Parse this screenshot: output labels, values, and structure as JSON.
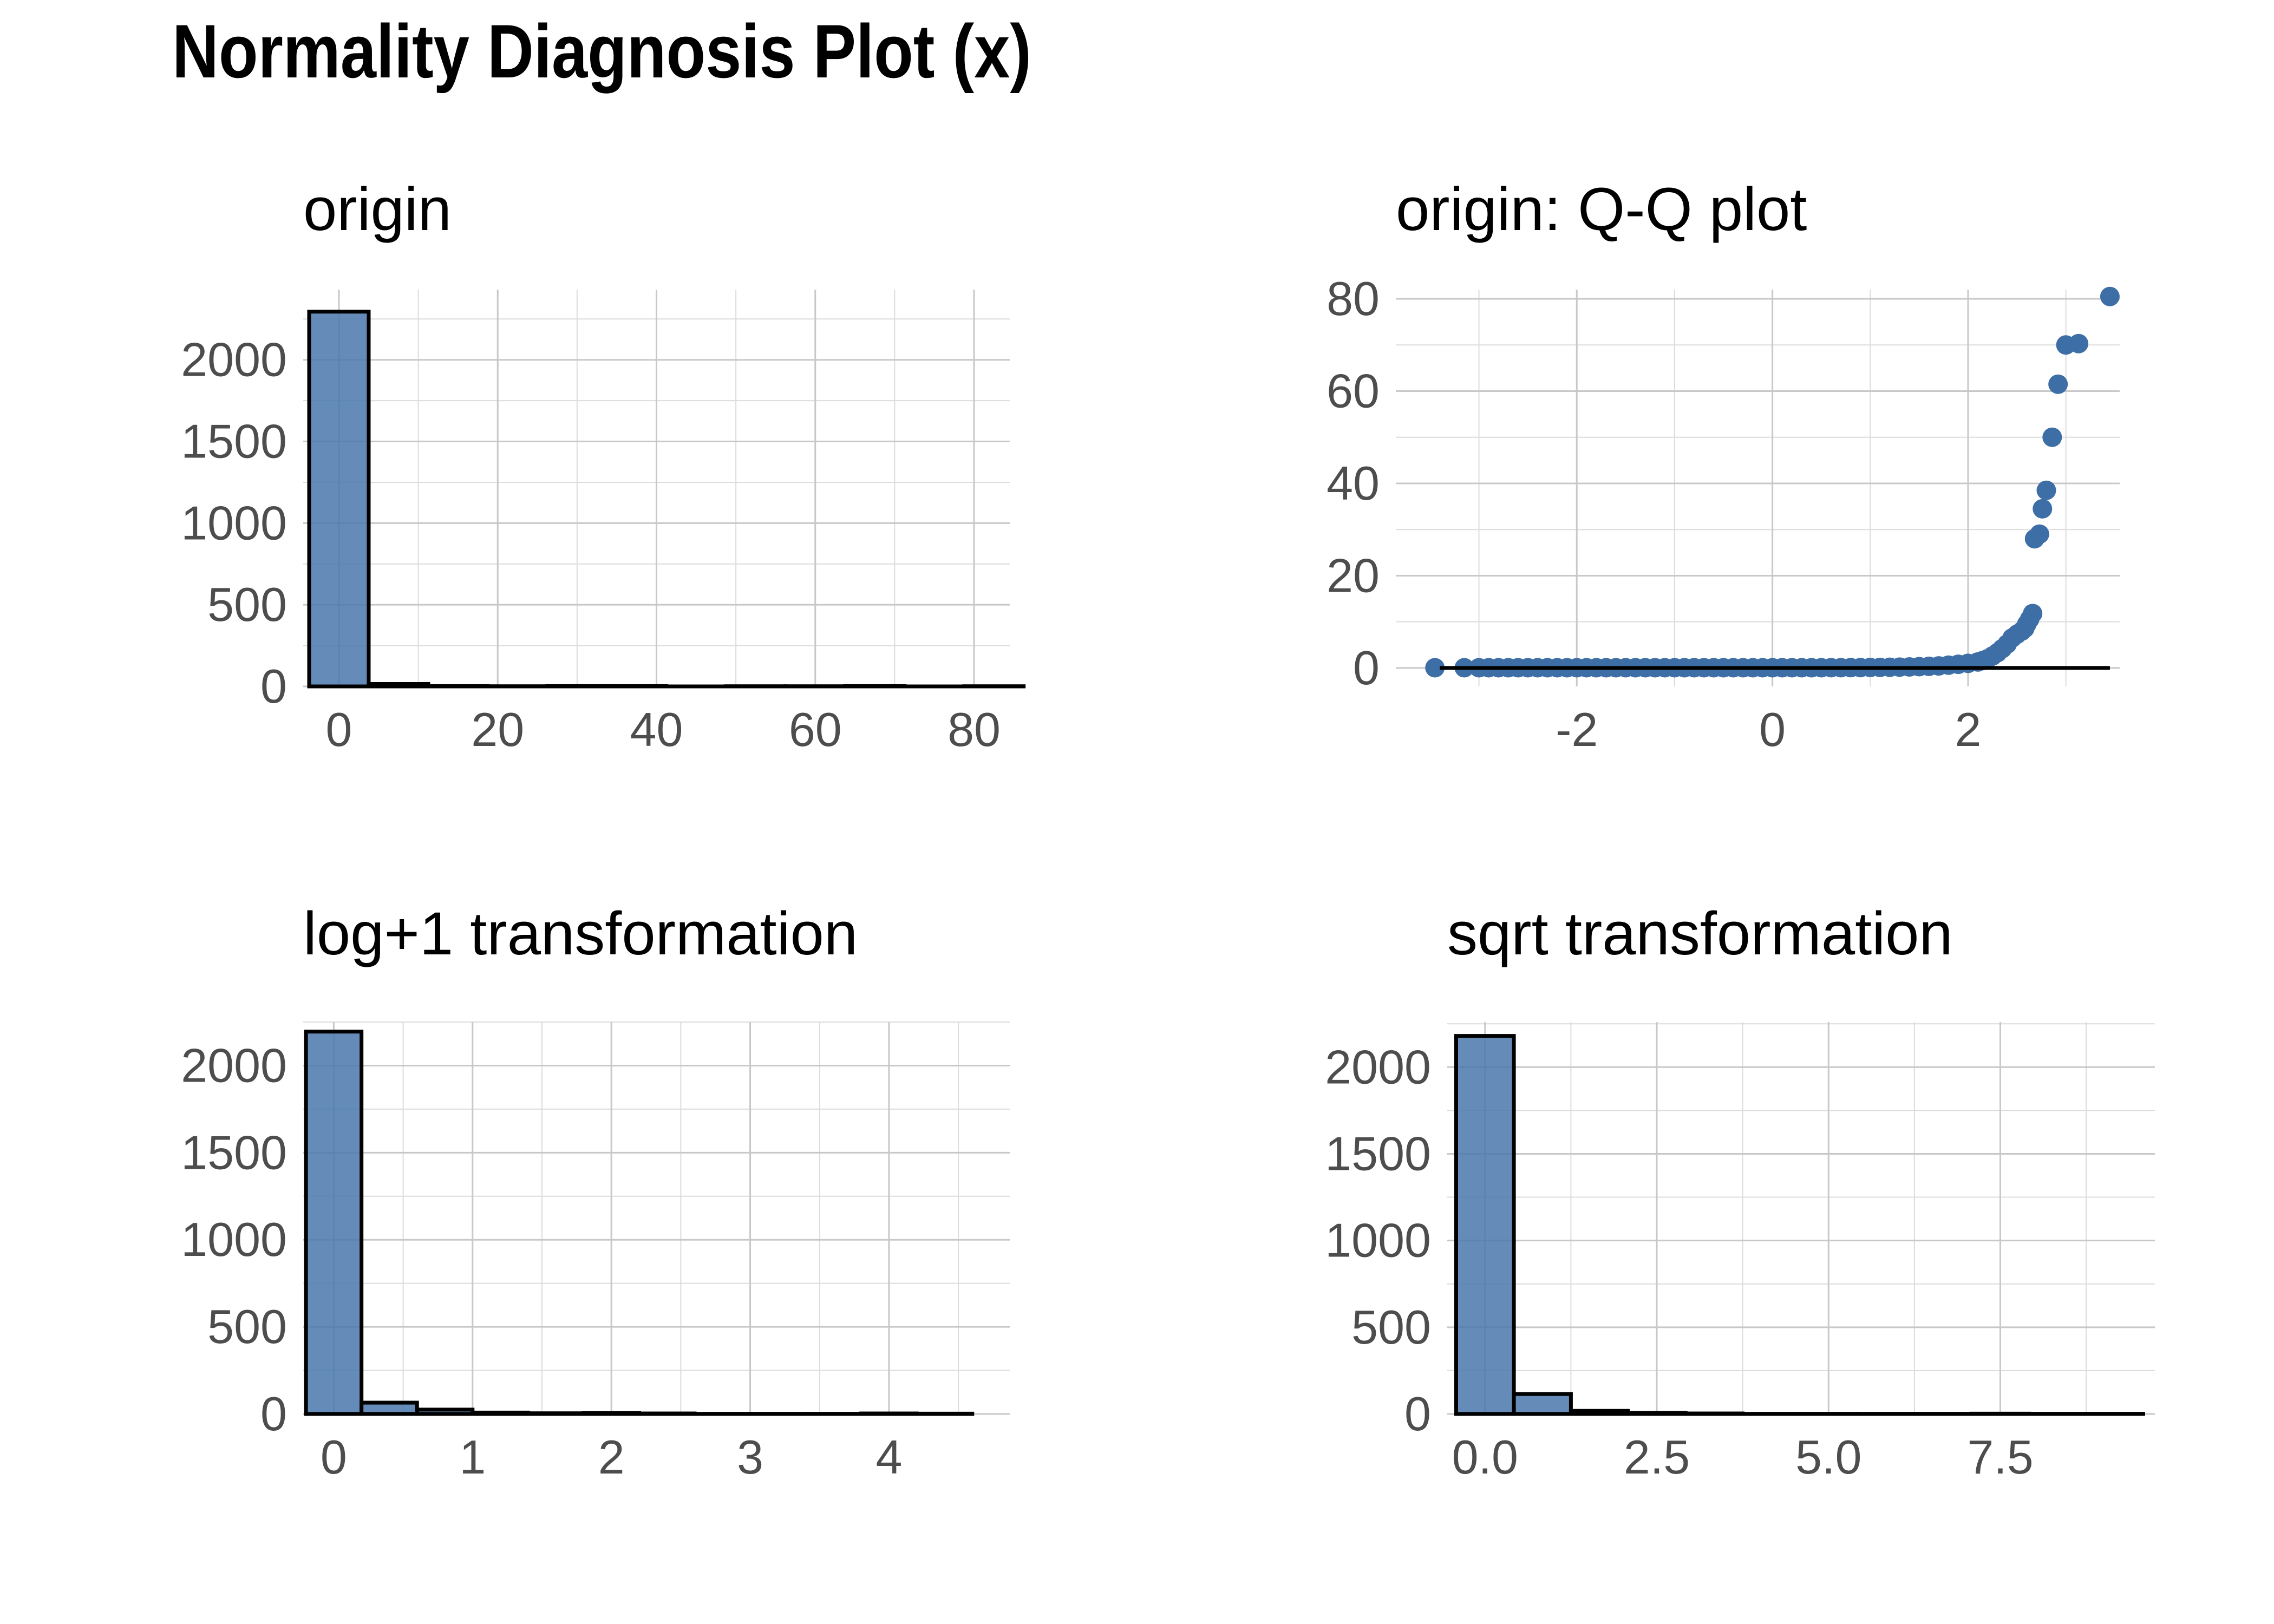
{
  "title": "Normality Diagnosis Plot (x)",
  "colors": {
    "fill": "#4a78ad",
    "point": "#3e6ea6",
    "outline": "#000000",
    "grid": "#c8c8c8"
  },
  "chart_data": [
    {
      "id": "origin",
      "type": "bar",
      "title": "origin",
      "xlabel": "",
      "ylabel": "",
      "grid": true,
      "xlim": [
        -4.5,
        84.5
      ],
      "ylim": [
        0,
        2430
      ],
      "xticks": [
        0,
        20,
        40,
        60,
        80
      ],
      "yticks": [
        0,
        500,
        1000,
        1500,
        2000
      ],
      "bin_width": 7.5,
      "bins": [
        {
          "x0": -3.75,
          "x1": 3.75,
          "count": 2295
        },
        {
          "x0": 3.75,
          "x1": 11.25,
          "count": 15
        },
        {
          "x0": 11.25,
          "x1": 18.75,
          "count": 2
        },
        {
          "x0": 18.75,
          "x1": 26.25,
          "count": 1
        },
        {
          "x0": 26.25,
          "x1": 33.75,
          "count": 2
        },
        {
          "x0": 33.75,
          "x1": 41.25,
          "count": 2
        },
        {
          "x0": 41.25,
          "x1": 48.75,
          "count": 0
        },
        {
          "x0": 48.75,
          "x1": 56.25,
          "count": 1
        },
        {
          "x0": 56.25,
          "x1": 63.75,
          "count": 1
        },
        {
          "x0": 63.75,
          "x1": 71.25,
          "count": 2
        },
        {
          "x0": 71.25,
          "x1": 78.75,
          "count": 0
        },
        {
          "x0": 78.75,
          "x1": 86.25,
          "count": 1
        }
      ]
    },
    {
      "id": "qq",
      "type": "scatter",
      "title": "origin: Q-Q plot",
      "xlabel": "",
      "ylabel": "",
      "grid": true,
      "xlim": [
        -3.85,
        3.55
      ],
      "ylim": [
        -4,
        82
      ],
      "xticks": [
        -2,
        0,
        2
      ],
      "yticks": [
        0,
        20,
        40,
        60,
        80
      ],
      "reference_line": {
        "x": [
          -3.4,
          3.45
        ],
        "y": [
          0,
          0
        ]
      },
      "points": [
        [
          -3.45,
          0.05
        ],
        [
          -3.15,
          0.05
        ],
        [
          -3.0,
          0.05
        ],
        [
          -2.9,
          0.05
        ],
        [
          -2.8,
          0.05
        ],
        [
          -2.7,
          0.05
        ],
        [
          -2.6,
          0.05
        ],
        [
          -2.5,
          0.05
        ],
        [
          -2.4,
          0.05
        ],
        [
          -2.3,
          0.05
        ],
        [
          -2.2,
          0.05
        ],
        [
          -2.1,
          0.05
        ],
        [
          -2.0,
          0.05
        ],
        [
          -1.9,
          0.05
        ],
        [
          -1.8,
          0.05
        ],
        [
          -1.7,
          0.05
        ],
        [
          -1.6,
          0.05
        ],
        [
          -1.5,
          0.05
        ],
        [
          -1.4,
          0.05
        ],
        [
          -1.3,
          0.05
        ],
        [
          -1.2,
          0.05
        ],
        [
          -1.1,
          0.05
        ],
        [
          -1.0,
          0.05
        ],
        [
          -0.9,
          0.05
        ],
        [
          -0.8,
          0.05
        ],
        [
          -0.7,
          0.05
        ],
        [
          -0.6,
          0.05
        ],
        [
          -0.5,
          0.05
        ],
        [
          -0.4,
          0.05
        ],
        [
          -0.3,
          0.05
        ],
        [
          -0.2,
          0.05
        ],
        [
          -0.1,
          0.05
        ],
        [
          0.0,
          0.05
        ],
        [
          0.1,
          0.05
        ],
        [
          0.2,
          0.05
        ],
        [
          0.3,
          0.05
        ],
        [
          0.4,
          0.05
        ],
        [
          0.5,
          0.05
        ],
        [
          0.6,
          0.06
        ],
        [
          0.7,
          0.06
        ],
        [
          0.8,
          0.07
        ],
        [
          0.9,
          0.08
        ],
        [
          1.0,
          0.1
        ],
        [
          1.1,
          0.12
        ],
        [
          1.2,
          0.15
        ],
        [
          1.3,
          0.18
        ],
        [
          1.4,
          0.22
        ],
        [
          1.5,
          0.28
        ],
        [
          1.6,
          0.35
        ],
        [
          1.7,
          0.45
        ],
        [
          1.8,
          0.6
        ],
        [
          1.9,
          0.8
        ],
        [
          2.0,
          1.0
        ],
        [
          2.1,
          1.3
        ],
        [
          2.15,
          1.6
        ],
        [
          2.2,
          2.0
        ],
        [
          2.25,
          2.6
        ],
        [
          2.3,
          3.3
        ],
        [
          2.35,
          4.2
        ],
        [
          2.4,
          5.2
        ],
        [
          2.45,
          6.5
        ],
        [
          2.5,
          7.3
        ],
        [
          2.55,
          8.0
        ],
        [
          2.58,
          8.6
        ],
        [
          2.6,
          9.5
        ],
        [
          2.63,
          10.6
        ],
        [
          2.66,
          11.8
        ],
        [
          2.68,
          28.0
        ],
        [
          2.73,
          29.0
        ],
        [
          2.76,
          34.5
        ],
        [
          2.8,
          38.5
        ],
        [
          2.86,
          50.0
        ],
        [
          2.92,
          61.5
        ],
        [
          3.0,
          70.0
        ],
        [
          3.13,
          70.3
        ],
        [
          3.45,
          80.5
        ]
      ]
    },
    {
      "id": "log1p",
      "type": "bar",
      "title": "log+1 transformation",
      "xlabel": "",
      "ylabel": "",
      "grid": true,
      "xlim": [
        -0.22,
        4.87
      ],
      "ylim": [
        0,
        2250
      ],
      "xticks": [
        0,
        1,
        2,
        3,
        4
      ],
      "yticks": [
        0,
        500,
        1000,
        1500,
        2000
      ],
      "bin_width": 0.4,
      "bins": [
        {
          "x0": -0.2,
          "x1": 0.2,
          "count": 2195
        },
        {
          "x0": 0.2,
          "x1": 0.6,
          "count": 65
        },
        {
          "x0": 0.6,
          "x1": 1.0,
          "count": 25
        },
        {
          "x0": 1.0,
          "x1": 1.4,
          "count": 8
        },
        {
          "x0": 1.4,
          "x1": 1.8,
          "count": 4
        },
        {
          "x0": 1.8,
          "x1": 2.2,
          "count": 5
        },
        {
          "x0": 2.2,
          "x1": 2.6,
          "count": 3
        },
        {
          "x0": 2.6,
          "x1": 3.0,
          "count": 1
        },
        {
          "x0": 3.0,
          "x1": 3.4,
          "count": 1
        },
        {
          "x0": 3.4,
          "x1": 3.8,
          "count": 1
        },
        {
          "x0": 3.8,
          "x1": 4.2,
          "count": 3
        },
        {
          "x0": 4.2,
          "x1": 4.6,
          "count": 2
        }
      ]
    },
    {
      "id": "sqrt",
      "type": "bar",
      "title": "sqrt transformation",
      "xlabel": "",
      "ylabel": "",
      "grid": true,
      "xlim": [
        -0.55,
        9.75
      ],
      "ylim": [
        0,
        2260
      ],
      "xticks": [
        0.0,
        2.5,
        5.0,
        7.5
      ],
      "xtick_labels": [
        "0.0",
        "2.5",
        "5.0",
        "7.5"
      ],
      "yticks": [
        0,
        500,
        1000,
        1500,
        2000
      ],
      "bin_width": 0.83,
      "bins": [
        {
          "x0": -0.42,
          "x1": 0.42,
          "count": 2180
        },
        {
          "x0": 0.42,
          "x1": 1.25,
          "count": 115
        },
        {
          "x0": 1.25,
          "x1": 2.08,
          "count": 18
        },
        {
          "x0": 2.08,
          "x1": 2.92,
          "count": 6
        },
        {
          "x0": 2.92,
          "x1": 3.75,
          "count": 3
        },
        {
          "x0": 3.75,
          "x1": 4.58,
          "count": 1
        },
        {
          "x0": 4.58,
          "x1": 5.42,
          "count": 1
        },
        {
          "x0": 5.42,
          "x1": 6.25,
          "count": 1
        },
        {
          "x0": 6.25,
          "x1": 7.08,
          "count": 1
        },
        {
          "x0": 7.08,
          "x1": 7.92,
          "count": 2
        },
        {
          "x0": 7.92,
          "x1": 8.75,
          "count": 1
        },
        {
          "x0": 8.75,
          "x1": 9.58,
          "count": 1
        }
      ]
    }
  ]
}
